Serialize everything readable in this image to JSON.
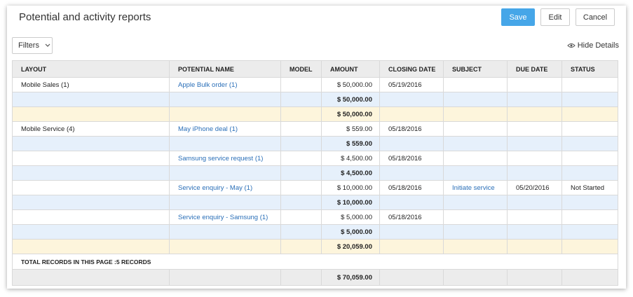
{
  "header": {
    "title": "Potential and activity reports",
    "buttons": [
      "Save",
      "Edit",
      "Cancel"
    ]
  },
  "toolbar": {
    "filters": "Filters",
    "hide_details": "Hide Details"
  },
  "table": {
    "columns": [
      "LAYOUT",
      "POTENTIAL NAME",
      "MODEL",
      "AMOUNT",
      "CLOSING DATE",
      "SUBJECT",
      "DUE DATE",
      "STATUS"
    ],
    "rows": [
      {
        "style": "detail",
        "cells": [
          "Mobile Sales (1)",
          "Apple Bulk order (1)",
          null,
          "$ 50,000.00",
          "05/19/2016",
          null,
          null,
          null
        ]
      },
      {
        "style": "subtotal",
        "cells": [
          null,
          null,
          null,
          "$ 50,000.00",
          null,
          null,
          null,
          null
        ]
      },
      {
        "style": "group-total",
        "cells": [
          null,
          null,
          null,
          "$ 50,000.00",
          null,
          null,
          null,
          null
        ]
      },
      {
        "style": "detail",
        "cells": [
          "Mobile Service (4)",
          "May iPhone deal (1)",
          null,
          "$ 559.00",
          "05/18/2016",
          null,
          null,
          null
        ]
      },
      {
        "style": "subtotal",
        "cells": [
          null,
          null,
          null,
          "$ 559.00",
          null,
          null,
          null,
          null
        ]
      },
      {
        "style": "detail",
        "cells": [
          null,
          "Samsung service request (1)",
          null,
          "$ 4,500.00",
          "05/18/2016",
          null,
          null,
          null
        ]
      },
      {
        "style": "subtotal",
        "cells": [
          null,
          null,
          null,
          "$ 4,500.00",
          null,
          null,
          null,
          null
        ]
      },
      {
        "style": "detail",
        "cells": [
          null,
          "Service enquiry - May (1)",
          null,
          "$ 10,000.00",
          "05/18/2016",
          "Initiate service",
          "05/20/2016",
          "Not Started"
        ]
      },
      {
        "style": "subtotal",
        "cells": [
          null,
          null,
          null,
          "$ 10,000.00",
          null,
          null,
          null,
          null
        ]
      },
      {
        "style": "detail",
        "cells": [
          null,
          "Service enquiry - Samsung (1)",
          null,
          "$ 5,000.00",
          "05/18/2016",
          null,
          null,
          null
        ]
      },
      {
        "style": "subtotal",
        "cells": [
          null,
          null,
          null,
          "$ 5,000.00",
          null,
          null,
          null,
          null
        ]
      },
      {
        "style": "group-total",
        "cells": [
          null,
          null,
          null,
          "$ 20,059.00",
          null,
          null,
          null,
          null
        ]
      }
    ],
    "summary": "TOTAL RECORDS IN THIS PAGE :5 RECORDS",
    "grand_total": {
      "style": "grand-total",
      "cells": [
        null,
        null,
        null,
        "$ 70,059.00",
        null,
        null,
        null,
        null
      ]
    }
  }
}
